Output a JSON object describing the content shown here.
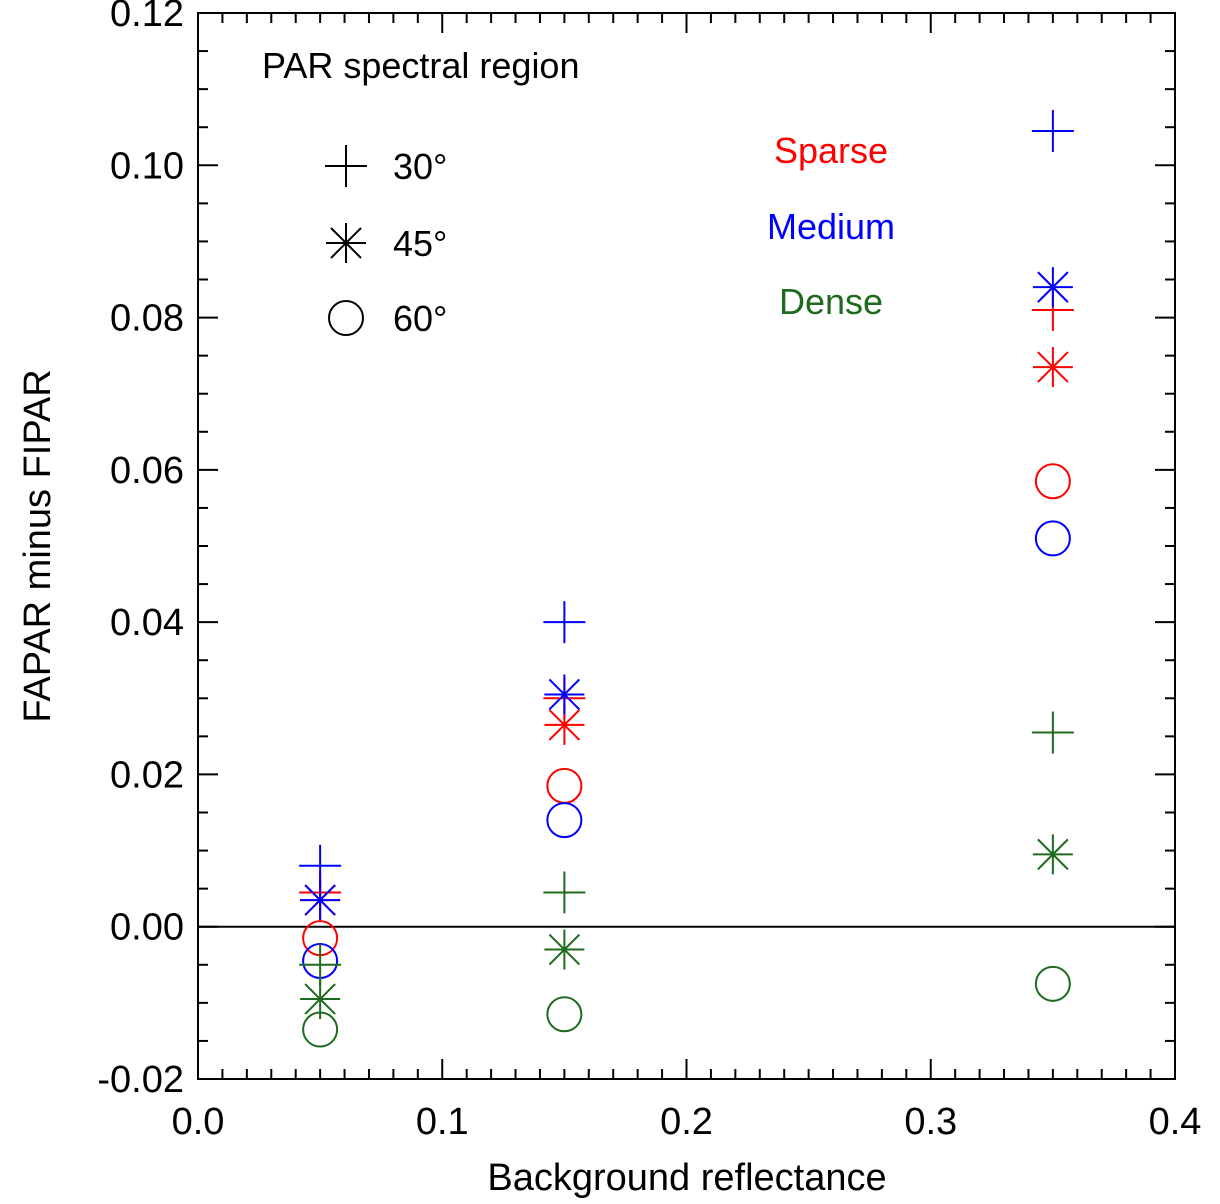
{
  "chart_data": {
    "type": "scatter",
    "title": "",
    "xlabel": "Background reflectance",
    "ylabel": "FAPAR minus FIPAR",
    "xlim": [
      0.0,
      0.4
    ],
    "ylim": [
      -0.02,
      0.12
    ],
    "x_ticks": [
      "0.0",
      "0.1",
      "0.2",
      "0.3",
      "0.4"
    ],
    "y_ticks": [
      "-0.02",
      "0.00",
      "0.02",
      "0.04",
      "0.06",
      "0.08",
      "0.10",
      "0.12"
    ],
    "x_tick_values": [
      0.0,
      0.1,
      0.2,
      0.3,
      0.4
    ],
    "y_tick_values": [
      -0.02,
      0.0,
      0.02,
      0.04,
      0.06,
      0.08,
      0.1,
      0.12
    ],
    "x_minor_step": 0.01,
    "y_minor_step": 0.005,
    "reference_line_y": 0.0,
    "grid": false,
    "annotation": "PAR spectral region",
    "marker_legend": [
      {
        "marker": "plus",
        "label": "30°"
      },
      {
        "marker": "asterisk",
        "label": "45°"
      },
      {
        "marker": "circle",
        "label": "60°"
      }
    ],
    "color_legend": [
      {
        "label": "Sparse",
        "color": "#ff0000"
      },
      {
        "label": "Medium",
        "color": "#0000ff"
      },
      {
        "label": "Dense",
        "color": "#1e6b1e"
      }
    ],
    "series": [
      {
        "canopy": "Sparse",
        "angle": "30°",
        "marker": "plus",
        "color": "#ff0000",
        "x": [
          0.05,
          0.15,
          0.35
        ],
        "y": [
          0.0045,
          0.03,
          0.081
        ]
      },
      {
        "canopy": "Sparse",
        "angle": "45°",
        "marker": "asterisk",
        "color": "#ff0000",
        "x": [
          0.05,
          0.15,
          0.35
        ],
        "y": [
          0.0035,
          0.0265,
          0.0735
        ]
      },
      {
        "canopy": "Sparse",
        "angle": "60°",
        "marker": "circle",
        "color": "#ff0000",
        "x": [
          0.05,
          0.15,
          0.35
        ],
        "y": [
          -0.0015,
          0.0185,
          0.0585
        ]
      },
      {
        "canopy": "Medium",
        "angle": "30°",
        "marker": "plus",
        "color": "#0000ff",
        "x": [
          0.05,
          0.15,
          0.35
        ],
        "y": [
          0.008,
          0.04,
          0.1045
        ]
      },
      {
        "canopy": "Medium",
        "angle": "45°",
        "marker": "asterisk",
        "color": "#0000ff",
        "x": [
          0.05,
          0.15,
          0.35
        ],
        "y": [
          0.0035,
          0.0305,
          0.084
        ]
      },
      {
        "canopy": "Medium",
        "angle": "60°",
        "marker": "circle",
        "color": "#0000ff",
        "x": [
          0.05,
          0.15,
          0.35
        ],
        "y": [
          -0.0045,
          0.014,
          0.051
        ]
      },
      {
        "canopy": "Dense",
        "angle": "30°",
        "marker": "plus",
        "color": "#1e6b1e",
        "x": [
          0.05,
          0.15,
          0.35
        ],
        "y": [
          -0.005,
          0.0045,
          0.0255
        ]
      },
      {
        "canopy": "Dense",
        "angle": "45°",
        "marker": "asterisk",
        "color": "#1e6b1e",
        "x": [
          0.05,
          0.15,
          0.35
        ],
        "y": [
          -0.0095,
          -0.003,
          0.0095
        ]
      },
      {
        "canopy": "Dense",
        "angle": "60°",
        "marker": "circle",
        "color": "#1e6b1e",
        "x": [
          0.05,
          0.15,
          0.35
        ],
        "y": [
          -0.0135,
          -0.0115,
          -0.0075
        ]
      }
    ]
  }
}
